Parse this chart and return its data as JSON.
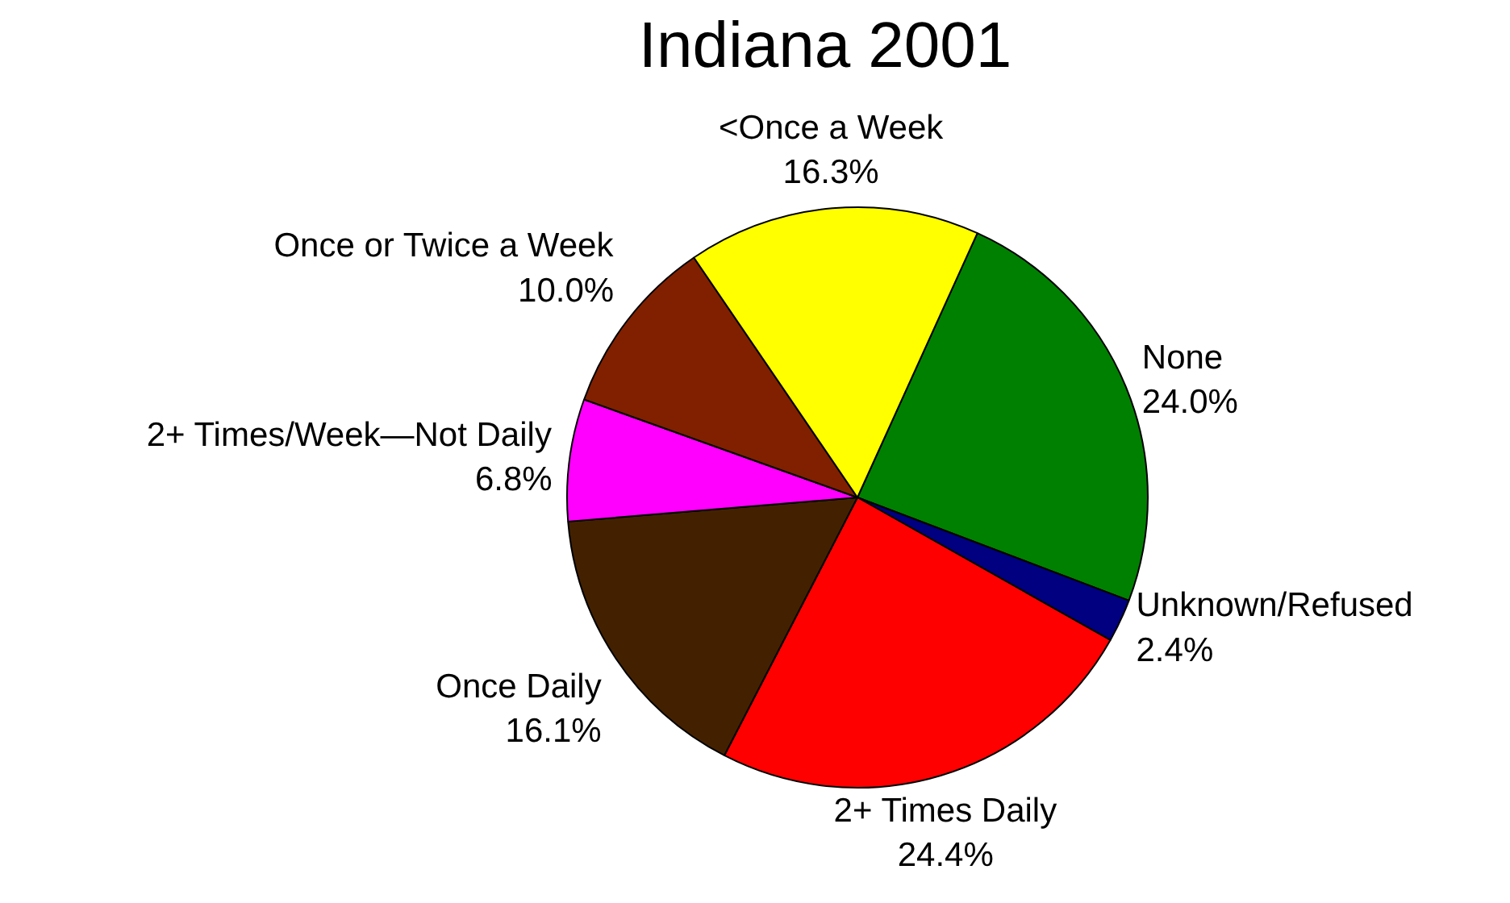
{
  "chart_data": {
    "type": "pie",
    "title": "Indiana 2001",
    "categories": [
      "None",
      "Unknown/Refused",
      "2+ Times Daily",
      "Once Daily",
      "2+ Times/Week—Not Daily",
      "Once or Twice a Week",
      "<Once a Week"
    ],
    "values": [
      24.0,
      2.4,
      24.4,
      16.1,
      6.8,
      10.0,
      16.3
    ],
    "value_labels": [
      "24.0%",
      "2.4%",
      "24.4%",
      "16.1%",
      "6.8%",
      "10.0%",
      "16.3%"
    ],
    "colors": [
      "#008000",
      "#000080",
      "#ff0000",
      "#432100",
      "#ff00ff",
      "#802000",
      "#ffff00"
    ]
  }
}
